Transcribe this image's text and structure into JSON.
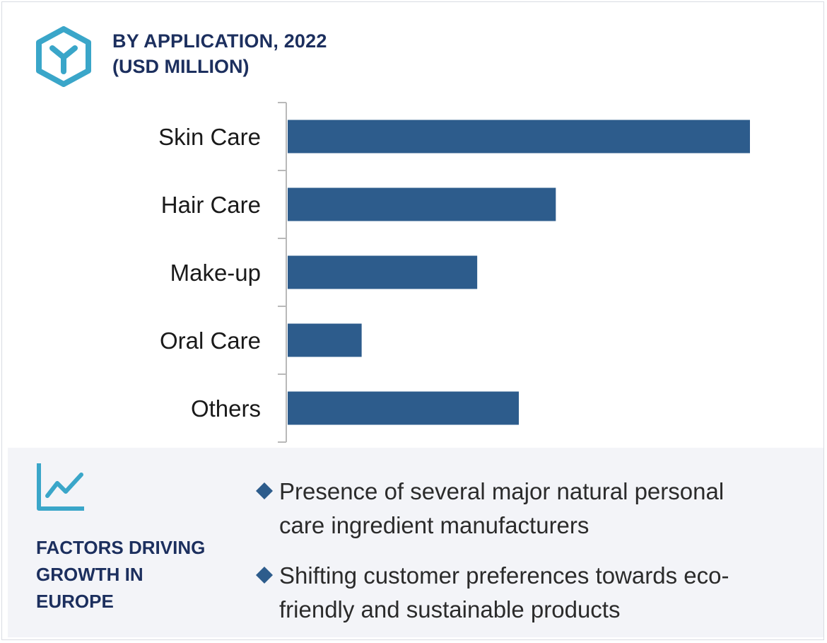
{
  "header": {
    "title": "BY APPLICATION, 2022",
    "subtitle": "(USD MILLION)",
    "logo_icon": "hexagon-y-icon"
  },
  "colors": {
    "bar": "#2d5c8c",
    "title": "#1c2f5e",
    "accent": "#3aa6c9",
    "panel_bg": "#f3f4f8",
    "bullet": "#2d5c8c"
  },
  "chart_data": {
    "type": "bar",
    "orientation": "horizontal",
    "categories": [
      "Skin Care",
      "Hair Care",
      "Make-up",
      "Oral Care",
      "Others"
    ],
    "values": [
      100,
      58,
      41,
      16,
      50
    ],
    "value_axis_labels_shown": false,
    "grid": false
  },
  "factors": {
    "icon": "trend-chart-icon",
    "title_lines": [
      "FACTORS DRIVING",
      "GROWTH IN",
      "EUROPE"
    ],
    "items": [
      {
        "lines": [
          "Presence of several major natural personal",
          "care ingredient manufacturers"
        ]
      },
      {
        "lines": [
          "Shifting customer preferences towards eco-",
          "friendly and sustainable products"
        ]
      }
    ]
  }
}
